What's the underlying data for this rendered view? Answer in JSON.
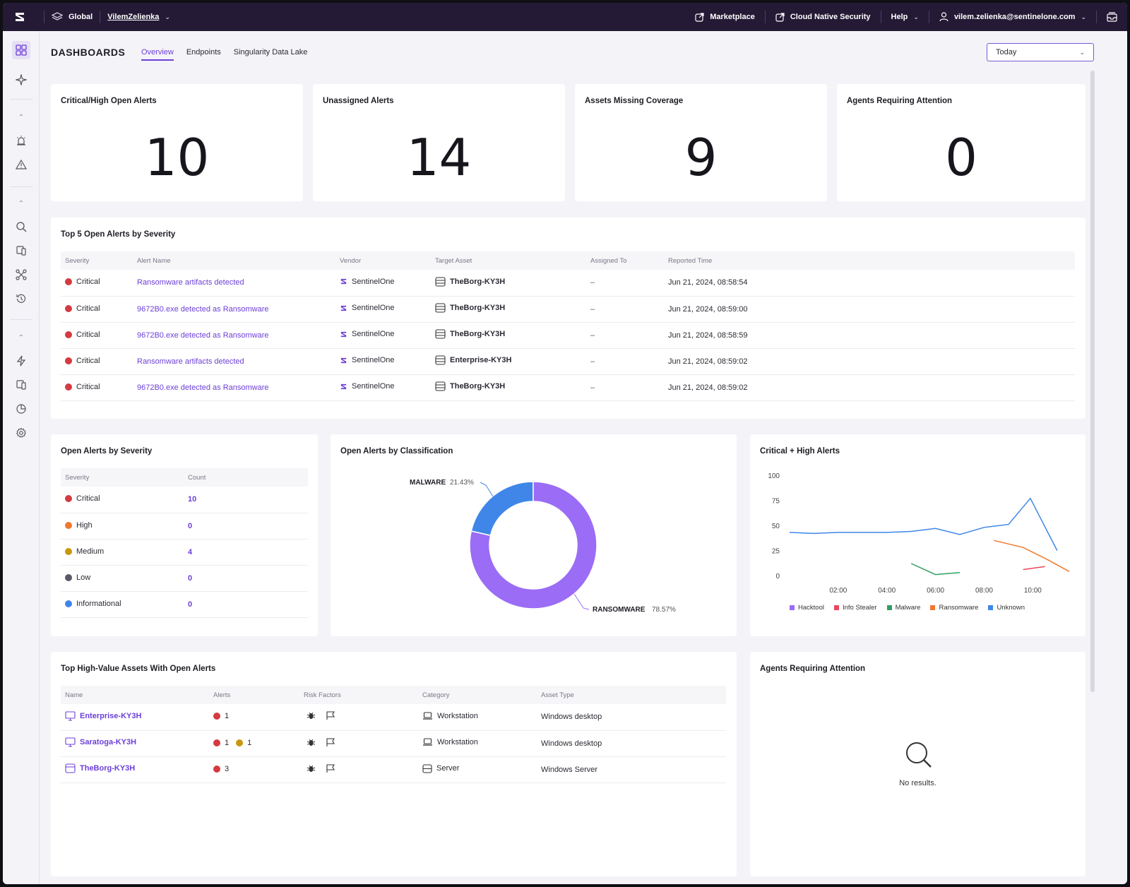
{
  "topbar": {
    "scope": "Global",
    "account": "VilemZelienka",
    "marketplace": "Marketplace",
    "cloud": "Cloud Native Security",
    "help": "Help",
    "user": "vilem.zelienka@sentinelone.com"
  },
  "header": {
    "title": "DASHBOARDS",
    "tabs": [
      {
        "label": "Overview",
        "active": true
      },
      {
        "label": "Endpoints",
        "active": false
      },
      {
        "label": "Singularity Data Lake",
        "active": false
      }
    ],
    "range": "Today"
  },
  "kpis": [
    {
      "title": "Critical/High Open Alerts",
      "value": "10"
    },
    {
      "title": "Unassigned Alerts",
      "value": "14"
    },
    {
      "title": "Assets Missing Coverage",
      "value": "9"
    },
    {
      "title": "Agents Requiring Attention",
      "value": "0"
    }
  ],
  "top_alerts": {
    "title": "Top 5 Open Alerts by Severity",
    "columns": [
      "Severity",
      "Alert Name",
      "Vendor",
      "Target Asset",
      "Assigned To",
      "Reported Time"
    ],
    "rows": [
      {
        "severity": "Critical",
        "name": "Ransomware artifacts detected",
        "vendor": "SentinelOne",
        "asset": "TheBorg-KY3H",
        "assigned": "–",
        "time": "Jun 21, 2024, 08:58:54"
      },
      {
        "severity": "Critical",
        "name": "9672B0.exe detected as Ransomware",
        "vendor": "SentinelOne",
        "asset": "TheBorg-KY3H",
        "assigned": "–",
        "time": "Jun 21, 2024, 08:59:00"
      },
      {
        "severity": "Critical",
        "name": "9672B0.exe detected as Ransomware",
        "vendor": "SentinelOne",
        "asset": "TheBorg-KY3H",
        "assigned": "–",
        "time": "Jun 21, 2024, 08:58:59"
      },
      {
        "severity": "Critical",
        "name": "Ransomware artifacts detected",
        "vendor": "SentinelOne",
        "asset": "Enterprise-KY3H",
        "assigned": "–",
        "time": "Jun 21, 2024, 08:59:02"
      },
      {
        "severity": "Critical",
        "name": "9672B0.exe detected as Ransomware",
        "vendor": "SentinelOne",
        "asset": "TheBorg-KY3H",
        "assigned": "–",
        "time": "Jun 21, 2024, 08:59:02"
      }
    ]
  },
  "severity_table": {
    "title": "Open Alerts by Severity",
    "columns": [
      "Severity",
      "Count"
    ],
    "rows": [
      {
        "label": "Critical",
        "count": "10",
        "color": "#d33b40"
      },
      {
        "label": "High",
        "count": "0",
        "color": "#f0782f"
      },
      {
        "label": "Medium",
        "count": "4",
        "color": "#c9970f"
      },
      {
        "label": "Low",
        "count": "0",
        "color": "#5a5866"
      },
      {
        "label": "Informational",
        "count": "0",
        "color": "#3f86e8"
      }
    ]
  },
  "classification": {
    "title": "Open Alerts by Classification",
    "malware_label": "MALWARE",
    "malware_pct": "21.43%",
    "ransomware_label": "RANSOMWARE",
    "ransomware_pct": "78.57%"
  },
  "chart_data": [
    {
      "type": "pie",
      "title": "Open Alerts by Classification",
      "labels": [
        "MALWARE",
        "RANSOMWARE"
      ],
      "values": [
        21.43,
        78.57
      ],
      "colors": [
        "#3f86e8",
        "#9b6cf5"
      ]
    },
    {
      "type": "line",
      "title": "Critical + High Alerts",
      "ylim": [
        0,
        100
      ],
      "yticks": [
        "100",
        "75",
        "50",
        "25",
        "0"
      ],
      "xticks": [
        "02:00",
        "04:00",
        "06:00",
        "08:00",
        "10:00"
      ],
      "legend_position": "bottom",
      "series": [
        {
          "name": "Hacktool",
          "color": "#9b6cf5",
          "points": []
        },
        {
          "name": "Info Stealer",
          "color": "#e8475f",
          "points": [
            [
              9.6,
              6
            ],
            [
              10.5,
              9
            ]
          ]
        },
        {
          "name": "Malware",
          "color": "#2f9e63",
          "points": [
            [
              5.0,
              12
            ],
            [
              6.0,
              1
            ],
            [
              7.0,
              3
            ]
          ]
        },
        {
          "name": "Ransomware",
          "color": "#f0782f",
          "points": [
            [
              8.4,
              35
            ],
            [
              9.6,
              28
            ],
            [
              10.6,
              16
            ],
            [
              11.5,
              4
            ]
          ]
        },
        {
          "name": "Unknown",
          "color": "#3f86e8",
          "points": [
            [
              0.0,
              43
            ],
            [
              1.0,
              42
            ],
            [
              2.0,
              43
            ],
            [
              3.0,
              43
            ],
            [
              4.0,
              43
            ],
            [
              5.0,
              44
            ],
            [
              6.0,
              47
            ],
            [
              7.0,
              41
            ],
            [
              8.0,
              48
            ],
            [
              9.0,
              51
            ],
            [
              9.9,
              77
            ],
            [
              11.0,
              25
            ]
          ]
        }
      ]
    }
  ],
  "line_chart": {
    "title": "Critical + High Alerts"
  },
  "assets": {
    "title": "Top High-Value Assets With Open Alerts",
    "columns": [
      "Name",
      "Alerts",
      "Risk Factors",
      "Category",
      "Asset Type"
    ],
    "rows": [
      {
        "name": "Enterprise-KY3H",
        "crit": "1",
        "med": "",
        "category": "Workstation",
        "type": "Windows desktop"
      },
      {
        "name": "Saratoga-KY3H",
        "crit": "1",
        "med": "1",
        "category": "Workstation",
        "type": "Windows desktop"
      },
      {
        "name": "TheBorg-KY3H",
        "crit": "3",
        "med": "",
        "category": "Server",
        "type": "Windows Server"
      }
    ]
  },
  "agents": {
    "title": "Agents Requiring Attention",
    "empty": "No results."
  }
}
